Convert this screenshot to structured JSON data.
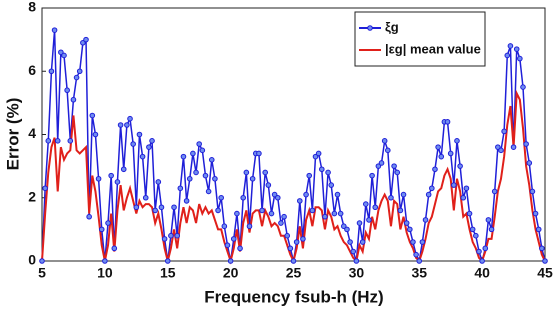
{
  "chart_data": {
    "type": "line",
    "xlabel": "Frequency fsub-h (Hz)",
    "ylabel": "Error (%)",
    "x": [
      5,
      5.25,
      5.5,
      5.75,
      6,
      6.25,
      6.5,
      6.75,
      7,
      7.25,
      7.5,
      7.75,
      8,
      8.25,
      8.5,
      8.75,
      9,
      9.25,
      9.5,
      9.75,
      10,
      10.25,
      10.5,
      10.75,
      11,
      11.25,
      11.5,
      11.75,
      12,
      12.25,
      12.5,
      12.75,
      13,
      13.25,
      13.5,
      13.75,
      14,
      14.25,
      14.5,
      14.75,
      15,
      15.25,
      15.5,
      15.75,
      16,
      16.25,
      16.5,
      16.75,
      17,
      17.25,
      17.5,
      17.75,
      18,
      18.25,
      18.5,
      18.75,
      19,
      19.25,
      19.5,
      19.75,
      20,
      20.25,
      20.5,
      20.75,
      21,
      21.25,
      21.5,
      21.75,
      22,
      22.25,
      22.5,
      22.75,
      23,
      23.25,
      23.5,
      23.75,
      24,
      24.25,
      24.5,
      24.75,
      25,
      25.25,
      25.5,
      25.75,
      26,
      26.25,
      26.5,
      26.75,
      27,
      27.25,
      27.5,
      27.75,
      28,
      28.25,
      28.5,
      28.75,
      29,
      29.25,
      29.5,
      29.75,
      30,
      30.25,
      30.5,
      30.75,
      31,
      31.25,
      31.5,
      31.75,
      32,
      32.25,
      32.5,
      32.75,
      33,
      33.25,
      33.5,
      33.75,
      34,
      34.25,
      34.5,
      34.75,
      35,
      35.25,
      35.5,
      35.75,
      36,
      36.25,
      36.5,
      36.75,
      37,
      37.25,
      37.5,
      37.75,
      38,
      38.25,
      38.5,
      38.75,
      39,
      39.25,
      39.5,
      39.75,
      40,
      40.25,
      40.5,
      40.75,
      41,
      41.25,
      41.5,
      41.75,
      42,
      42.25,
      42.5,
      42.75,
      43,
      43.25,
      43.5,
      43.75,
      44,
      44.25,
      44.5,
      44.75,
      45
    ],
    "series": [
      {
        "name": "ξg",
        "color": "#1f1fd8",
        "marker": true,
        "values": [
          0,
          2.3,
          3.8,
          6.0,
          7.3,
          3.8,
          6.6,
          6.5,
          5.4,
          3.8,
          5.1,
          5.8,
          6.0,
          6.9,
          7.0,
          1.4,
          4.6,
          4.0,
          2.6,
          1.0,
          0,
          1.2,
          2.7,
          0.4,
          2.5,
          4.3,
          2.9,
          4.3,
          4.5,
          3.7,
          1.7,
          4.0,
          3.3,
          2.0,
          3.6,
          3.8,
          1.6,
          2.5,
          1.7,
          0.7,
          0,
          0.8,
          1.7,
          0.8,
          2.3,
          3.3,
          1.9,
          2.6,
          3.4,
          2.8,
          3.7,
          3.5,
          2.7,
          2.2,
          3.2,
          2.6,
          1.6,
          2.0,
          1.1,
          0.5,
          0,
          0.7,
          1.5,
          0.4,
          2.0,
          2.8,
          1.1,
          2.6,
          3.4,
          3.4,
          1.6,
          2.8,
          2.4,
          1.5,
          2.1,
          2.0,
          1.2,
          1.4,
          0.8,
          0.4,
          0,
          0.6,
          1.9,
          0.7,
          2.1,
          2.7,
          1.6,
          3.3,
          3.4,
          2.9,
          1.4,
          2.8,
          2.4,
          1.5,
          2.1,
          1.5,
          1.1,
          1.0,
          0.6,
          0.3,
          0,
          1.2,
          0.6,
          1.8,
          1.3,
          2.7,
          1.7,
          3.0,
          3.1,
          3.8,
          3.5,
          2.0,
          3.0,
          2.8,
          1.6,
          2.1,
          1.2,
          1.0,
          0.6,
          0.2,
          0,
          0.6,
          1.3,
          2.1,
          2.3,
          2.9,
          3.6,
          3.3,
          4.4,
          4.4,
          3.4,
          2.4,
          3.8,
          3.0,
          2.0,
          2.3,
          1.5,
          1.0,
          0.8,
          0.3,
          0,
          0.4,
          1.3,
          1.0,
          2.2,
          3.6,
          3.5,
          4.1,
          6.5,
          6.8,
          3.6,
          6.7,
          6.4,
          5.5,
          3.7,
          3.1,
          2.2,
          1.5,
          1.0,
          0.4,
          0
        ]
      },
      {
        "name": "|εg| mean value",
        "color": "#e0201a",
        "marker": false,
        "values": [
          0,
          1.5,
          2.8,
          3.6,
          3.9,
          2.2,
          3.6,
          3.2,
          3.4,
          3.5,
          4.6,
          3.5,
          3.4,
          3.5,
          3.6,
          1.5,
          2.7,
          2.2,
          1.4,
          0.5,
          0,
          0.5,
          1.5,
          0.3,
          1.6,
          2.4,
          1.6,
          2.0,
          2.3,
          1.9,
          1.5,
          1.9,
          1.7,
          1.8,
          1.8,
          1.7,
          1.2,
          1.5,
          1.0,
          0.4,
          0,
          0.4,
          1.0,
          0.4,
          1.2,
          1.7,
          1.2,
          1.7,
          1.6,
          1.2,
          1.8,
          1.5,
          1.7,
          1.5,
          1.6,
          1.3,
          1.0,
          1.0,
          0.6,
          0.3,
          0,
          0.4,
          1.0,
          0.3,
          1.2,
          1.6,
          0.9,
          1.5,
          1.6,
          1.6,
          1.1,
          1.6,
          1.4,
          1.1,
          1.2,
          1.1,
          0.8,
          0.8,
          0.5,
          0.2,
          0,
          0.4,
          1.1,
          0.4,
          1.3,
          1.6,
          1.1,
          1.7,
          1.7,
          1.6,
          1.0,
          1.6,
          1.4,
          1.0,
          1.1,
          0.8,
          0.6,
          0.5,
          0.3,
          0.1,
          0,
          0.5,
          0.3,
          0.9,
          0.7,
          1.4,
          1.0,
          1.6,
          1.9,
          2.1,
          1.9,
          1.1,
          1.9,
          1.8,
          1.0,
          1.4,
          0.9,
          0.6,
          0.4,
          0.1,
          0,
          0.3,
          0.7,
          1.2,
          1.4,
          1.8,
          2.2,
          2.3,
          2.7,
          2.9,
          2.6,
          1.6,
          2.6,
          2.2,
          1.4,
          1.5,
          1.0,
          0.6,
          0.4,
          0.1,
          0,
          0.3,
          0.7,
          0.7,
          1.4,
          2.2,
          2.6,
          3.3,
          4.3,
          4.9,
          3.6,
          5.3,
          5.1,
          4.2,
          3.0,
          2.4,
          1.6,
          1.0,
          0.6,
          0.2,
          0
        ]
      }
    ],
    "xlim": [
      5,
      45
    ],
    "xticks": [
      5,
      10,
      15,
      20,
      25,
      30,
      35,
      40,
      45
    ],
    "ylim": [
      0,
      8
    ],
    "yticks": [
      0,
      2,
      4,
      6,
      8
    ],
    "grid": false,
    "legend": "upper right"
  }
}
